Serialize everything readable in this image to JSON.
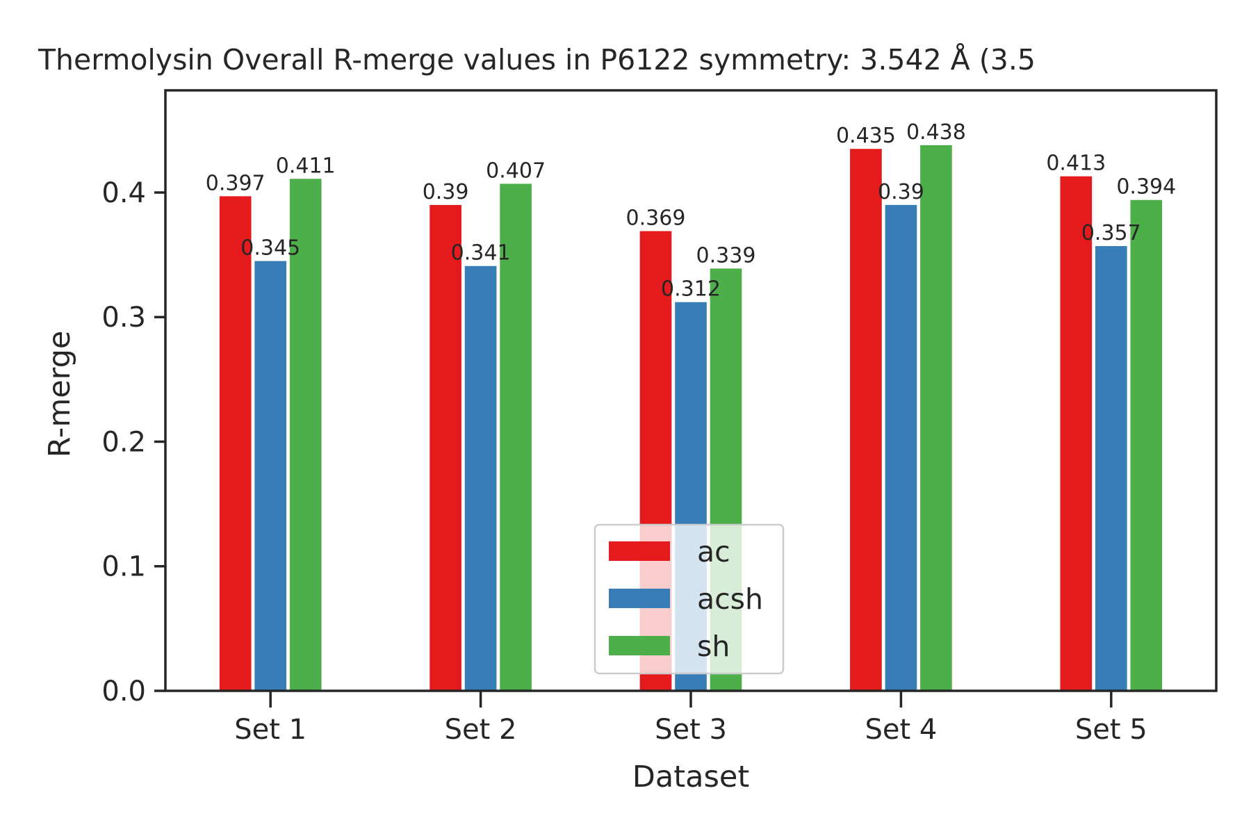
{
  "chart_data": {
    "type": "bar",
    "title": "Thermolysin Overall R-merge values in P6122 symmetry: 3.542 Å (3.5",
    "xlabel": "Dataset",
    "ylabel": "R-merge",
    "categories": [
      "Set 1",
      "Set 2",
      "Set 3",
      "Set 4",
      "Set 5"
    ],
    "series": [
      {
        "name": "ac",
        "color": "#e41a1c",
        "values": [
          0.397,
          0.39,
          0.369,
          0.435,
          0.413
        ],
        "labels": [
          "0.397",
          "0.39",
          "0.369",
          "0.435",
          "0.413"
        ]
      },
      {
        "name": "acsh",
        "color": "#377eb8",
        "values": [
          0.345,
          0.341,
          0.312,
          0.39,
          0.357
        ],
        "labels": [
          "0.345",
          "0.341",
          "0.312",
          "0.39",
          "0.357"
        ]
      },
      {
        "name": "sh",
        "color": "#4daf4a",
        "values": [
          0.411,
          0.407,
          0.339,
          0.438,
          0.394
        ],
        "labels": [
          "0.411",
          "0.407",
          "0.339",
          "0.438",
          "0.394"
        ]
      }
    ],
    "ylim": [
      0,
      0.482
    ],
    "yticks": [
      "0.0",
      "0.1",
      "0.2",
      "0.3",
      "0.4"
    ],
    "grid": false,
    "legend_position": "bottom-center"
  }
}
